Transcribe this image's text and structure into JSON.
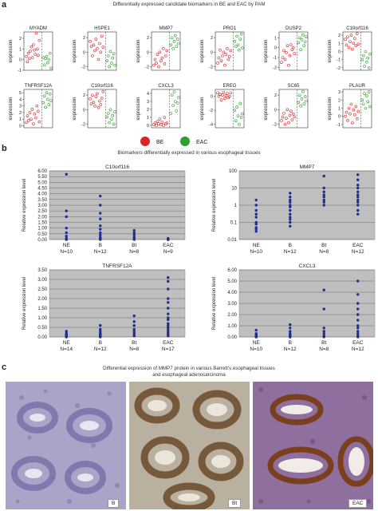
{
  "panel_a": {
    "letter": "a",
    "title": "Differentially expressed candidate biomarkers in BE and EAC by PAM",
    "ylabel": "expression",
    "legend": [
      {
        "label": "BE",
        "color": "#d62728"
      },
      {
        "label": "EAC",
        "color": "#2ca02c"
      }
    ]
  },
  "panel_b": {
    "letter": "b",
    "title": "Biomarkers differentially expressed in various esophageal tissues",
    "ylabel": "Relative expression level"
  },
  "panel_c": {
    "letter": "c",
    "title_line1": "Differential expression of MMP7 protein in various Barrett's esophageal tissues",
    "title_line2": "and esophageal adenocarcinoma",
    "photos": [
      {
        "label": "B"
      },
      {
        "label": "Bt"
      },
      {
        "label": "EAC"
      }
    ]
  },
  "colors": {
    "be_red": "#d62728",
    "eac_green": "#2ca02c",
    "dot_blue": "#1f2f8f",
    "plot_bg": "#bfbfbf"
  },
  "chart_data": [
    {
      "type": "scatter",
      "title": "MYADM",
      "ylabel": "expression",
      "yticks": [
        "-1",
        "0",
        "1",
        "2"
      ],
      "ylim": [
        -1,
        2.6
      ],
      "series": [
        {
          "name": "BE",
          "values": [
            0.3,
            -0.2,
            0.6,
            0.1,
            0.8,
            1.2,
            0.2,
            1.4,
            0.9,
            0.5,
            2.5,
            1.0,
            0.4,
            1.8
          ]
        },
        {
          "name": "EAC",
          "values": [
            0.2,
            -0.5,
            0.1,
            0.3,
            -0.3,
            0.0,
            0.6,
            -0.8
          ]
        }
      ]
    },
    {
      "type": "scatter",
      "title": "HSPE1",
      "ylabel": "expression",
      "yticks": [
        "-2",
        "0",
        "2"
      ],
      "ylim": [
        -2.5,
        2.8
      ],
      "series": [
        {
          "name": "BE",
          "values": [
            1.5,
            0.8,
            -0.5,
            1.0,
            0.2,
            1.8,
            0.5,
            -1.0,
            1.2,
            0.0,
            2.2,
            0.7
          ]
        },
        {
          "name": "EAC",
          "values": [
            -1.2,
            -0.5,
            -2.0,
            0.1,
            -1.5,
            -0.8,
            -0.2,
            -1.8
          ]
        }
      ]
    },
    {
      "type": "scatter",
      "title": "MMP7",
      "ylabel": "expression",
      "yticks": [
        "-2",
        "0",
        "2"
      ],
      "ylim": [
        -2.5,
        2.8
      ],
      "series": [
        {
          "name": "BE",
          "values": [
            -1.8,
            -1.0,
            -1.5,
            -0.3,
            -2.0,
            0.0,
            -1.2,
            -0.8,
            0.5,
            -1.6,
            -0.5,
            0.2
          ]
        },
        {
          "name": "EAC",
          "values": [
            1.0,
            2.0,
            0.5,
            1.5,
            2.3,
            0.8,
            1.8,
            1.2
          ]
        }
      ]
    },
    {
      "type": "scatter",
      "title": "PRG1",
      "ylabel": "expression",
      "yticks": [
        "-2",
        "0",
        "2"
      ],
      "ylim": [
        -2.5,
        2.8
      ],
      "series": [
        {
          "name": "BE",
          "values": [
            -1.5,
            -0.8,
            0.3,
            -1.2,
            -0.5,
            0.0,
            -1.8,
            -0.3,
            0.5,
            -1.0,
            -0.6,
            0.2
          ]
        },
        {
          "name": "EAC",
          "values": [
            1.5,
            0.8,
            2.2,
            1.0,
            0.3,
            1.8,
            2.5,
            0.6
          ]
        }
      ]
    },
    {
      "type": "scatter",
      "title": "DUSP2",
      "ylabel": "expression",
      "yticks": [
        "-2",
        "-1",
        "0",
        "1"
      ],
      "ylim": [
        -2.3,
        1.6
      ],
      "series": [
        {
          "name": "BE",
          "values": [
            -1.5,
            -1.0,
            -0.3,
            -1.2,
            -0.5,
            0.2,
            -1.8,
            -0.8,
            0.3,
            -0.2,
            0.0,
            -0.6
          ]
        },
        {
          "name": "EAC",
          "values": [
            0.5,
            1.0,
            -0.2,
            0.8,
            1.3,
            0.2,
            0.6,
            1.1
          ]
        }
      ]
    },
    {
      "type": "scatter",
      "title": "C10orf116",
      "ylabel": "expression",
      "yticks": [
        "-2",
        "-1",
        "0",
        "1",
        "2"
      ],
      "ylim": [
        -2.3,
        2.4
      ],
      "series": [
        {
          "name": "BE",
          "values": [
            1.5,
            0.8,
            1.8,
            0.5,
            1.2,
            2.0,
            0.3,
            1.0,
            1.6,
            0.7,
            2.2,
            0.9
          ]
        },
        {
          "name": "EAC",
          "values": [
            -1.0,
            -0.5,
            -1.8,
            0.0,
            -1.3,
            -0.8,
            -2.0,
            -0.3
          ]
        }
      ]
    },
    {
      "type": "scatter",
      "title": "TNFRSF12A",
      "ylabel": "expression",
      "yticks": [
        "0",
        "1",
        "2",
        "3",
        "4",
        "5"
      ],
      "ylim": [
        -0.3,
        5.5
      ],
      "series": [
        {
          "name": "BE",
          "values": [
            0.5,
            1.5,
            0.8,
            2.0,
            1.0,
            2.5,
            0.3,
            1.8,
            1.2,
            3.0,
            2.2,
            0.6
          ]
        },
        {
          "name": "EAC",
          "values": [
            3.5,
            4.5,
            2.8,
            5.0,
            4.0,
            3.2,
            4.8,
            3.8
          ]
        }
      ]
    },
    {
      "type": "scatter",
      "title": "C10orf116",
      "ylabel": "expression",
      "yticks": [
        "-2",
        "0",
        "2"
      ],
      "ylim": [
        -2.5,
        2.8
      ],
      "series": [
        {
          "name": "BE",
          "values": [
            1.5,
            0.8,
            2.0,
            1.0,
            0.5,
            1.8,
            2.2,
            0.3,
            1.2,
            0.7,
            1.6,
            2.5
          ]
        },
        {
          "name": "EAC",
          "values": [
            -1.0,
            -0.5,
            -1.8,
            0.0,
            -1.3,
            -0.8,
            -2.0,
            -0.3
          ]
        }
      ]
    },
    {
      "type": "scatter",
      "title": "CXCL3",
      "ylabel": "expression",
      "yticks": [
        "0",
        "1",
        "2",
        "3",
        "4"
      ],
      "ylim": [
        -0.3,
        4.5
      ],
      "series": [
        {
          "name": "BE",
          "values": [
            0.1,
            0.3,
            0.0,
            0.5,
            0.2,
            0.8,
            0.1,
            0.4,
            0.0,
            1.0,
            0.2,
            0.3
          ]
        },
        {
          "name": "EAC",
          "values": [
            1.5,
            3.8,
            2.5,
            4.2,
            3.0,
            1.8,
            2.8,
            3.5
          ]
        }
      ]
    },
    {
      "type": "scatter",
      "title": "EREG",
      "ylabel": "expression",
      "yticks": [
        "-4",
        "-2",
        "0"
      ],
      "ylim": [
        -4.5,
        1.0
      ],
      "series": [
        {
          "name": "BE",
          "values": [
            0.5,
            0.0,
            0.3,
            -0.5,
            0.2,
            0.6,
            -0.3,
            0.1,
            0.4,
            -0.2,
            0.0,
            0.5
          ]
        },
        {
          "name": "EAC",
          "values": [
            -2.0,
            -3.5,
            -1.5,
            -2.8,
            -4.0,
            -1.0,
            -3.0,
            -2.5
          ]
        }
      ]
    },
    {
      "type": "scatter",
      "title": "SC65",
      "ylabel": "expression",
      "yticks": [
        "-2",
        "0",
        "2"
      ],
      "ylim": [
        -2.5,
        2.8
      ],
      "series": [
        {
          "name": "BE",
          "values": [
            -1.5,
            -1.0,
            -0.5,
            -2.0,
            -1.2,
            0.0,
            -1.8,
            -0.8,
            -0.2,
            -1.4,
            -0.6,
            -1.0
          ]
        },
        {
          "name": "EAC",
          "values": [
            1.0,
            2.0,
            0.5,
            1.5,
            2.5,
            0.8,
            1.8,
            1.2
          ]
        }
      ]
    },
    {
      "type": "scatter",
      "title": "PLAUR",
      "ylabel": "expression",
      "yticks": [
        "-1",
        "0",
        "1",
        "2",
        "3"
      ],
      "ylim": [
        -1.4,
        3.3
      ],
      "series": [
        {
          "name": "BE",
          "values": [
            0.0,
            0.5,
            -0.5,
            1.0,
            0.3,
            1.5,
            -0.8,
            0.8,
            0.2,
            1.2,
            -0.3,
            0.6
          ]
        },
        {
          "name": "EAC",
          "values": [
            2.0,
            1.5,
            2.8,
            1.0,
            2.5,
            1.8,
            3.0,
            1.2
          ]
        }
      ]
    },
    {
      "type": "scatter",
      "title": "C10orf116",
      "ylabel": "Relative expression level",
      "yscale": "linear",
      "yticks": [
        "0.00",
        "0.50",
        "1.00",
        "1.50",
        "2.00",
        "2.50",
        "3.00",
        "3.50",
        "4.00",
        "4.50",
        "5.00",
        "5.50",
        "6.00"
      ],
      "ylim": [
        0,
        6
      ],
      "categories": [
        "NE\nN=10",
        "B\nN=12",
        "Bt\nN=8",
        "EAC\nN=9"
      ],
      "values": [
        [
          5.7,
          2.5,
          2.0,
          1.0,
          0.6,
          0.3,
          0.1,
          0.05,
          0.02,
          0.0
        ],
        [
          3.8,
          3.0,
          2.3,
          1.8,
          1.2,
          0.9,
          0.6,
          0.4,
          0.2,
          0.1,
          0.05,
          0.0
        ],
        [
          0.8,
          0.6,
          0.4,
          0.2,
          0.1,
          0.05,
          0.02,
          0.0
        ],
        [
          0.1,
          0.05,
          0.03,
          0.02,
          0.01,
          0.0,
          0.0,
          0.0,
          0.0
        ]
      ]
    },
    {
      "type": "scatter",
      "title": "MMP7",
      "ylabel": "Relative expression level",
      "yscale": "log",
      "yticks": [
        "0.01",
        "0.1",
        "1",
        "10",
        "100"
      ],
      "ylim": [
        0.01,
        100
      ],
      "categories": [
        "NE\nN=10",
        "B\nN=12",
        "Bt\nN=8",
        "EAC\nN=12"
      ],
      "values": [
        [
          2.0,
          1.0,
          0.5,
          0.3,
          0.2,
          0.1,
          0.08,
          0.05,
          0.04,
          0.03
        ],
        [
          5.0,
          3.0,
          2.0,
          1.5,
          1.0,
          0.8,
          0.5,
          0.3,
          0.2,
          0.15,
          0.1,
          0.06
        ],
        [
          50,
          10,
          6,
          4,
          3,
          2,
          1.5,
          1.0
        ],
        [
          60,
          30,
          15,
          10,
          6,
          4,
          3,
          2,
          1.5,
          1.0,
          0.5,
          0.3
        ]
      ]
    },
    {
      "type": "scatter",
      "title": "TNFRSF12A",
      "ylabel": "Relative expression level",
      "yscale": "linear",
      "yticks": [
        "0.00",
        "0.50",
        "1.00",
        "1.50",
        "2.00",
        "2.50",
        "3.00",
        "3.50"
      ],
      "ylim": [
        0,
        3.5
      ],
      "categories": [
        "NE\nN=14",
        "B\nN=12",
        "Bt\nN=8",
        "EAC\nN=17"
      ],
      "values": [
        [
          0.3,
          0.2,
          0.15,
          0.1,
          0.08,
          0.05,
          0.04,
          0.03,
          0.02,
          0.02,
          0.01,
          0.01,
          0.0,
          0.0
        ],
        [
          0.6,
          0.4,
          0.3,
          0.2,
          0.15,
          0.1,
          0.08,
          0.05,
          0.03,
          0.02,
          0.01,
          0.0
        ],
        [
          1.1,
          0.8,
          0.6,
          0.4,
          0.3,
          0.2,
          0.1,
          0.05
        ],
        [
          3.1,
          2.9,
          2.5,
          2.0,
          1.8,
          1.5,
          1.2,
          1.0,
          0.9,
          0.7,
          0.6,
          0.5,
          0.4,
          0.3,
          0.2,
          0.1,
          0.05
        ]
      ]
    },
    {
      "type": "scatter",
      "title": "CXCL3",
      "ylabel": "Relative expression level",
      "yscale": "linear",
      "yticks": [
        "0.00",
        "1.00",
        "2.00",
        "3.00",
        "4.00",
        "5.00",
        "6.00"
      ],
      "ylim": [
        0,
        6
      ],
      "categories": [
        "NE\nN=10",
        "B\nN=12",
        "Bt\nN=8",
        "EAC\nN=12"
      ],
      "values": [
        [
          0.6,
          0.3,
          0.2,
          0.1,
          0.05,
          0.03,
          0.02,
          0.01,
          0.0,
          0.0
        ],
        [
          1.1,
          0.8,
          0.5,
          0.3,
          0.2,
          0.1,
          0.05,
          0.03,
          0.02,
          0.01,
          0.0,
          0.0
        ],
        [
          4.2,
          2.5,
          0.8,
          0.5,
          0.3,
          0.1,
          0.05,
          0.0
        ],
        [
          5.0,
          3.8,
          3.0,
          2.5,
          2.0,
          1.5,
          1.0,
          0.8,
          0.5,
          0.3,
          0.1,
          0.0
        ]
      ]
    }
  ]
}
